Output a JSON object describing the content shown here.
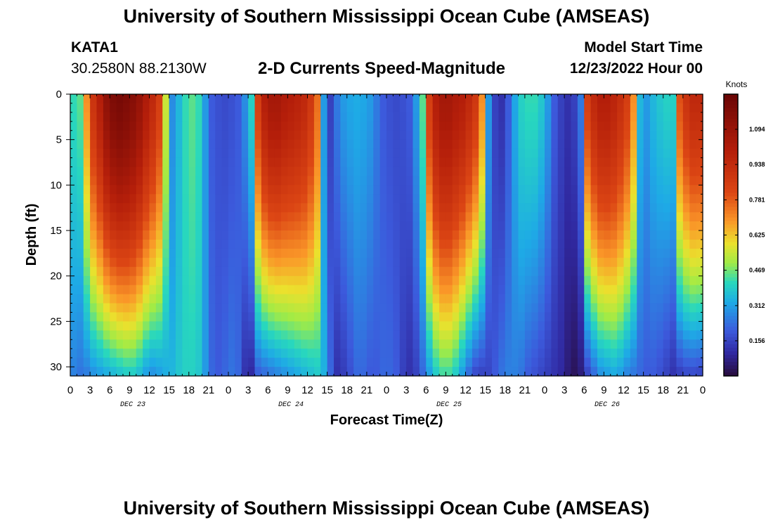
{
  "page": {
    "title": "University of Southern Mississippi Ocean Cube (AMSEAS)",
    "title_repeat": "University of Southern Mississippi Ocean Cube (AMSEAS)",
    "station": "KATA1",
    "coords": "30.2580N  88.2130W",
    "subtitle": "2-D Currents Speed-Magnitude",
    "model_label": "Model Start Time",
    "model_time": "12/23/2022 Hour 00"
  },
  "chart_data": {
    "type": "heatmap",
    "title": "2-D Currents Speed-Magnitude",
    "xlabel": "Forecast Time(Z)",
    "ylabel": "Depth (ft)",
    "x_ticks": [
      "0",
      "3",
      "6",
      "9",
      "12",
      "15",
      "18",
      "21",
      "0",
      "3",
      "6",
      "9",
      "12",
      "15",
      "18",
      "21",
      "0",
      "3",
      "6",
      "9",
      "12",
      "15",
      "18",
      "21",
      "0",
      "3",
      "6",
      "9",
      "12",
      "15",
      "18",
      "21",
      "0"
    ],
    "x_range_hours": [
      0,
      96
    ],
    "date_labels": [
      {
        "label": "DEC 23",
        "hour": 9.5
      },
      {
        "label": "DEC 24",
        "hour": 33.5
      },
      {
        "label": "DEC 25",
        "hour": 57.5
      },
      {
        "label": "DEC 26",
        "hour": 81.5
      }
    ],
    "y_ticks": [
      0,
      5,
      10,
      15,
      20,
      25,
      30
    ],
    "y_range_ft": [
      0,
      31
    ],
    "colorbar": {
      "unit": "Knots",
      "range": [
        0,
        1.25
      ],
      "ticks": [
        "1.094",
        "0.938",
        "0.781",
        "0.625",
        "0.469",
        "0.312",
        "0.156"
      ],
      "tick_values": [
        1.094,
        0.938,
        0.781,
        0.625,
        0.469,
        0.312,
        0.156
      ]
    },
    "column_hours": [
      0,
      1,
      2,
      3,
      4,
      5,
      6,
      7,
      8,
      9,
      10,
      11,
      12,
      13,
      14,
      15,
      16,
      17,
      18,
      19,
      20,
      21,
      22,
      23,
      24,
      25,
      26,
      27,
      28,
      29,
      30,
      31,
      32,
      33,
      34,
      35,
      36,
      37,
      38,
      39,
      40,
      41,
      42,
      43,
      44,
      45,
      46,
      47,
      48,
      49,
      50,
      51,
      52,
      53,
      54,
      55,
      56,
      57,
      58,
      59,
      60,
      61,
      62,
      63,
      64,
      65,
      66,
      67,
      68,
      69,
      70,
      71,
      72,
      73,
      74,
      75,
      76,
      77,
      78,
      79,
      80,
      81,
      82,
      83,
      84,
      85,
      86,
      87,
      88,
      89,
      90,
      91,
      92,
      93,
      94,
      95,
      96
    ],
    "surface_speed_kn": [
      0.42,
      0.45,
      0.7,
      0.9,
      1.0,
      1.12,
      1.18,
      1.2,
      1.18,
      1.15,
      1.1,
      1.02,
      0.95,
      0.85,
      0.55,
      0.28,
      0.35,
      0.42,
      0.45,
      0.42,
      0.3,
      0.2,
      0.18,
      0.17,
      0.18,
      0.2,
      0.28,
      0.4,
      0.85,
      1.0,
      1.05,
      1.05,
      1.02,
      1.0,
      0.98,
      0.95,
      0.88,
      0.75,
      0.3,
      0.15,
      0.25,
      0.3,
      0.32,
      0.33,
      0.32,
      0.3,
      0.25,
      0.2,
      0.18,
      0.17,
      0.18,
      0.2,
      0.3,
      0.45,
      0.85,
      1.0,
      1.05,
      1.05,
      1.02,
      1.0,
      0.95,
      0.88,
      0.7,
      0.3,
      0.15,
      0.12,
      0.2,
      0.32,
      0.4,
      0.42,
      0.42,
      0.38,
      0.3,
      0.2,
      0.15,
      0.12,
      0.15,
      0.25,
      0.85,
      0.95,
      1.0,
      1.0,
      0.97,
      0.92,
      0.85,
      0.7,
      0.35,
      0.3,
      0.35,
      0.38,
      0.4,
      0.4,
      0.8,
      0.9,
      0.95,
      0.95,
      0.93
    ],
    "bottom_speed_kn": [
      0.26,
      0.24,
      0.25,
      0.28,
      0.3,
      0.32,
      0.34,
      0.36,
      0.38,
      0.38,
      0.35,
      0.3,
      0.28,
      0.3,
      0.33,
      0.35,
      0.38,
      0.4,
      0.4,
      0.38,
      0.3,
      0.22,
      0.2,
      0.22,
      0.24,
      0.22,
      0.12,
      0.1,
      0.2,
      0.22,
      0.24,
      0.26,
      0.28,
      0.3,
      0.32,
      0.34,
      0.36,
      0.38,
      0.34,
      0.22,
      0.12,
      0.14,
      0.18,
      0.22,
      0.22,
      0.2,
      0.2,
      0.22,
      0.22,
      0.2,
      0.15,
      0.12,
      0.15,
      0.22,
      0.3,
      0.38,
      0.42,
      0.42,
      0.38,
      0.3,
      0.22,
      0.16,
      0.15,
      0.16,
      0.2,
      0.24,
      0.26,
      0.26,
      0.24,
      0.2,
      0.18,
      0.16,
      0.14,
      0.12,
      0.1,
      0.06,
      0.03,
      0.06,
      0.15,
      0.22,
      0.28,
      0.3,
      0.32,
      0.3,
      0.26,
      0.24,
      0.22,
      0.2,
      0.2,
      0.18,
      0.15,
      0.12,
      0.14,
      0.16,
      0.16,
      0.15,
      0.14
    ]
  }
}
